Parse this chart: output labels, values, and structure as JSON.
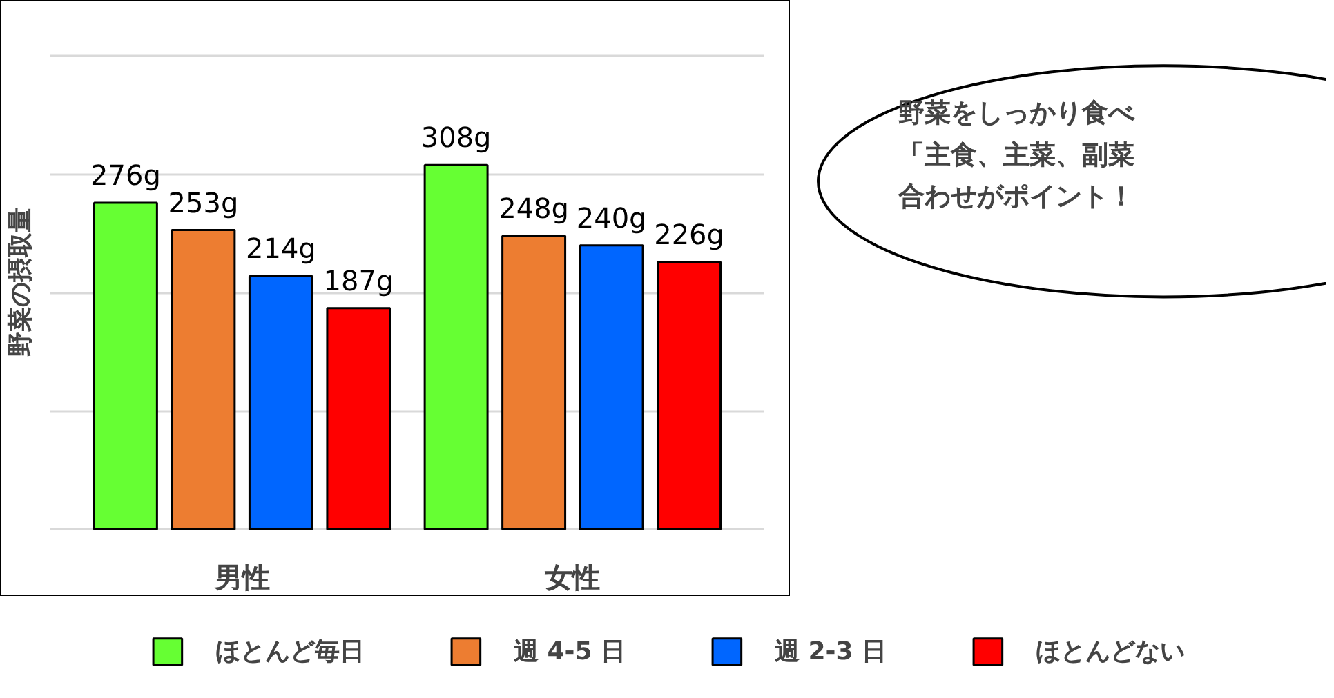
{
  "chart_data": {
    "type": "bar",
    "ylabel": "野菜の摂取量",
    "categories": [
      "男性",
      "女性"
    ],
    "series": [
      {
        "name": "ほとんど毎日",
        "color": "#66ff33",
        "values": [
          276,
          308
        ],
        "value_labels": [
          "276g",
          "308g"
        ]
      },
      {
        "name": "週 4-5 日",
        "color": "#ed7d31",
        "values": [
          253,
          248
        ],
        "value_labels": [
          "253g",
          "248g"
        ]
      },
      {
        "name": "週 2-3 日",
        "color": "#0066ff",
        "values": [
          214,
          240
        ],
        "value_labels": [
          "214g",
          "240g"
        ]
      },
      {
        "name": "ほとんどない",
        "color": "#ff0000",
        "values": [
          187,
          226
        ],
        "value_labels": [
          "187g",
          "226g"
        ]
      }
    ],
    "yticks": [
      {
        "value": 0,
        "label": null
      },
      {
        "value": 100,
        "label": null
      },
      {
        "value": 200,
        "label": null
      },
      {
        "value": 300,
        "label": null
      },
      {
        "value": 400,
        "label": null
      }
    ],
    "grid": "y",
    "tick_labels": "x",
    "legend": "bottom",
    "annotations": [
      "野菜をしっかり食べ",
      "「主食、主菜、副菜",
      "合わせがポイント！"
    ]
  }
}
